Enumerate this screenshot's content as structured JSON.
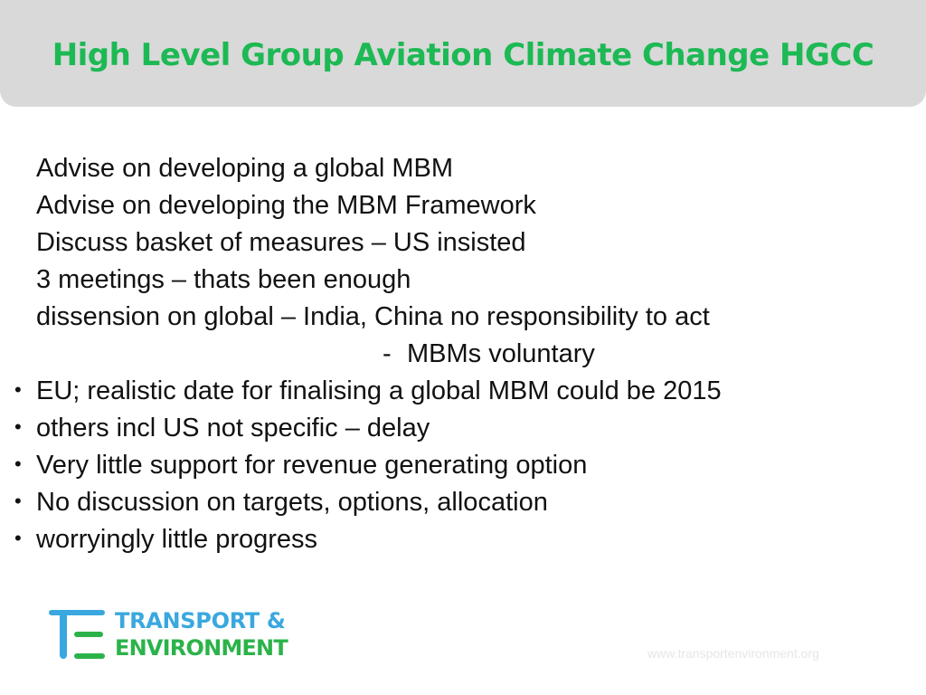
{
  "slide": {
    "title": "High Level Group Aviation Climate Change HGCC",
    "lines": [
      {
        "text": "Advise on developing a global MBM",
        "bullet": ""
      },
      {
        "text": "Advise on developing the MBM Framework",
        "bullet": ""
      },
      {
        "text": "Discuss basket of measures – US insisted",
        "bullet": ""
      },
      {
        "text": "3 meetings – thats been enough",
        "bullet": ""
      },
      {
        "text": "dissension on global – India, China no responsibility to act",
        "bullet": ""
      },
      {
        "text": "MBMs voluntary",
        "dash": "-"
      },
      {
        "text": "EU; realistic date for finalising a global MBM could be 2015",
        "bullet": "•"
      },
      {
        "text": "others incl US not specific – delay",
        "bullet": "•"
      },
      {
        "text": "Very little support for revenue generating option",
        "bullet": "•"
      },
      {
        "text": "No discussion on targets, options, allocation",
        "bullet": "•"
      },
      {
        "text": "worryingly little progress",
        "bullet": "•"
      }
    ]
  },
  "logo": {
    "line1": "TRANSPORT &",
    "line2": "ENVIRONMENT"
  },
  "footer": {
    "url": "www.transportenvironment.org"
  },
  "colors": {
    "title": "#1db954",
    "title_bar": "#d9d9d9",
    "logo_blue": "#3aa8df",
    "logo_green": "#2bb34a"
  }
}
